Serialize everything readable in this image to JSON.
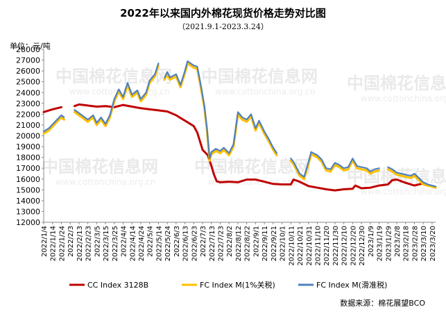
{
  "chart_data": {
    "type": "line",
    "title": "2022年以来国内外棉花现货价格走势对比图",
    "subtitle": "（2021.9.1-2023.3.24）",
    "ylabel": "单位：元/吨",
    "ylim": [
      12000,
      28000
    ],
    "yticks": [
      12000,
      13000,
      14000,
      15000,
      16000,
      17000,
      18000,
      19000,
      20000,
      21000,
      22000,
      23000,
      24000,
      25000,
      26000,
      27000,
      28000
    ],
    "grid": false,
    "legend_position": "bottom",
    "x_tick_labels": [
      "2022/1/4",
      "2022/1/14",
      "2022/1/24",
      "2022/2/3",
      "2022/2/13",
      "2022/2/23",
      "2022/3/5",
      "2022/3/15",
      "2022/3/25",
      "2022/4/4",
      "2022/4/14",
      "2022/4/24",
      "2022/5/4",
      "2022/5/14",
      "2022/5/24",
      "2022/6/3",
      "2022/6/13",
      "2022/6/23",
      "2022/7/3",
      "2022/7/13",
      "2022/7/23",
      "2022/8/2",
      "2022/8/12",
      "2022/8/22",
      "2022/9/1",
      "2022/9/11",
      "2022/9/21",
      "2022/10/1",
      "2022/10/11",
      "2022/10/21",
      "2022/10/31",
      "2022/11/10",
      "2022/11/20",
      "2022/11/30",
      "2022/12/10",
      "2022/12/20",
      "2022/12/30",
      "2023/1/9",
      "2023/1/19",
      "2023/1/29",
      "2023/2/8",
      "2023/2/18",
      "2023/2/28",
      "2023/3/10",
      "2023/3/20"
    ],
    "series": [
      {
        "name": "CC Index 3128B",
        "color": "#c00000",
        "points": [
          [
            "2022/1/4",
            22200
          ],
          [
            "2022/1/14",
            22450
          ],
          [
            "2022/1/24",
            22650
          ],
          [
            "2022/2/3",
            null
          ],
          [
            "2022/2/8",
            22750
          ],
          [
            "2022/2/13",
            22900
          ],
          [
            "2022/2/23",
            22800
          ],
          [
            "2022/3/5",
            22700
          ],
          [
            "2022/3/15",
            22750
          ],
          [
            "2022/3/25",
            22650
          ],
          [
            "2022/4/4",
            22850
          ],
          [
            "2022/4/14",
            22700
          ],
          [
            "2022/4/24",
            22550
          ],
          [
            "2022/5/4",
            22450
          ],
          [
            "2022/5/14",
            22350
          ],
          [
            "2022/5/24",
            22250
          ],
          [
            "2022/6/3",
            21900
          ],
          [
            "2022/6/13",
            21400
          ],
          [
            "2022/6/23",
            20900
          ],
          [
            "2022/6/27",
            20300
          ],
          [
            "2022/7/3",
            18700
          ],
          [
            "2022/7/9",
            18200
          ],
          [
            "2022/7/13",
            17200
          ],
          [
            "2022/7/16",
            16400
          ],
          [
            "2022/7/19",
            15800
          ],
          [
            "2022/7/23",
            15700
          ],
          [
            "2022/8/2",
            15750
          ],
          [
            "2022/8/12",
            15700
          ],
          [
            "2022/8/22",
            15950
          ],
          [
            "2022/9/1",
            15950
          ],
          [
            "2022/9/11",
            15750
          ],
          [
            "2022/9/21",
            15550
          ],
          [
            "2022/10/1",
            15500
          ],
          [
            "2022/10/11",
            15500
          ],
          [
            "2022/10/14",
            15950
          ],
          [
            "2022/10/21",
            15750
          ],
          [
            "2022/10/31",
            15350
          ],
          [
            "2022/11/10",
            15200
          ],
          [
            "2022/11/20",
            15050
          ],
          [
            "2022/11/30",
            14950
          ],
          [
            "2022/12/10",
            15050
          ],
          [
            "2022/12/20",
            15100
          ],
          [
            "2022/12/23",
            15400
          ],
          [
            "2022/12/30",
            15150
          ],
          [
            "2023/1/9",
            15200
          ],
          [
            "2023/1/19",
            15400
          ],
          [
            "2023/1/29",
            15500
          ],
          [
            "2023/2/3",
            15900
          ],
          [
            "2023/2/8",
            15950
          ],
          [
            "2023/2/18",
            15650
          ],
          [
            "2023/2/28",
            15400
          ],
          [
            "2023/3/10",
            15600
          ],
          [
            "2023/3/20",
            15300
          ],
          [
            "2023/3/24",
            15250
          ]
        ]
      },
      {
        "name": "FC Index M(1%关税)",
        "color": "#ffc000",
        "points": [
          [
            "2022/1/4",
            20200
          ],
          [
            "2022/1/10",
            20500
          ],
          [
            "2022/1/18",
            21200
          ],
          [
            "2022/1/24",
            21700
          ],
          [
            "2022/1/27",
            21500
          ],
          [
            "2022/2/3",
            null
          ],
          [
            "2022/2/8",
            22200
          ],
          [
            "2022/2/13",
            21900
          ],
          [
            "2022/2/23",
            21300
          ],
          [
            "2022/3/1",
            21700
          ],
          [
            "2022/3/5",
            21000
          ],
          [
            "2022/3/10",
            21500
          ],
          [
            "2022/3/15",
            20900
          ],
          [
            "2022/3/20",
            21700
          ],
          [
            "2022/3/25",
            23200
          ],
          [
            "2022/3/30",
            24100
          ],
          [
            "2022/4/4",
            23400
          ],
          [
            "2022/4/9",
            24700
          ],
          [
            "2022/4/14",
            23600
          ],
          [
            "2022/4/20",
            24000
          ],
          [
            "2022/4/24",
            23200
          ],
          [
            "2022/4/30",
            23800
          ],
          [
            "2022/5/4",
            24900
          ],
          [
            "2022/5/10",
            25500
          ],
          [
            "2022/5/14",
            26500
          ],
          [
            "2022/5/17",
            null
          ],
          [
            "2022/5/21",
            25200
          ],
          [
            "2022/5/24",
            25700
          ],
          [
            "2022/5/27",
            25200
          ],
          [
            "2022/6/3",
            25500
          ],
          [
            "2022/6/8",
            24500
          ],
          [
            "2022/6/13",
            25800
          ],
          [
            "2022/6/16",
            26700
          ],
          [
            "2022/6/23",
            26300
          ],
          [
            "2022/6/27",
            26200
          ],
          [
            "2022/7/1",
            24500
          ],
          [
            "2022/7/5",
            22600
          ],
          [
            "2022/7/8",
            20500
          ],
          [
            "2022/7/11",
            17700
          ],
          [
            "2022/7/13",
            18300
          ],
          [
            "2022/7/18",
            18600
          ],
          [
            "2022/7/23",
            18400
          ],
          [
            "2022/7/27",
            18700
          ],
          [
            "2022/8/2",
            18200
          ],
          [
            "2022/8/7",
            19000
          ],
          [
            "2022/8/12",
            22000
          ],
          [
            "2022/8/17",
            21500
          ],
          [
            "2022/8/22",
            21300
          ],
          [
            "2022/8/27",
            21800
          ],
          [
            "2022/9/1",
            20500
          ],
          [
            "2022/9/5",
            21200
          ],
          [
            "2022/9/11",
            20200
          ],
          [
            "2022/9/16",
            19500
          ],
          [
            "2022/9/21",
            18700
          ],
          [
            "2022/9/25",
            18200
          ],
          [
            "2022/10/1",
            null
          ],
          [
            "2022/10/11",
            17700
          ],
          [
            "2022/10/14",
            17400
          ],
          [
            "2022/10/21",
            16300
          ],
          [
            "2022/10/26",
            16000
          ],
          [
            "2022/10/31",
            17400
          ],
          [
            "2022/11/3",
            18300
          ],
          [
            "2022/11/10",
            18000
          ],
          [
            "2022/11/15",
            17600
          ],
          [
            "2022/11/20",
            16800
          ],
          [
            "2022/11/25",
            16700
          ],
          [
            "2022/11/30",
            17300
          ],
          [
            "2022/12/5",
            17100
          ],
          [
            "2022/12/10",
            16800
          ],
          [
            "2022/12/15",
            16900
          ],
          [
            "2022/12/20",
            17700
          ],
          [
            "2022/12/25",
            17000
          ],
          [
            "2022/12/30",
            16900
          ],
          [
            "2023/1/5",
            16800
          ],
          [
            "2023/1/9",
            16500
          ],
          [
            "2023/1/14",
            16700
          ],
          [
            "2023/1/19",
            16800
          ],
          [
            "2023/1/21",
            null
          ],
          [
            "2023/1/29",
            16900
          ],
          [
            "2023/2/3",
            16700
          ],
          [
            "2023/2/8",
            16400
          ],
          [
            "2023/2/13",
            16300
          ],
          [
            "2023/2/18",
            16200
          ],
          [
            "2023/2/24",
            16100
          ],
          [
            "2023/2/28",
            16300
          ],
          [
            "2023/3/5",
            15900
          ],
          [
            "2023/3/10",
            15500
          ],
          [
            "2023/3/15",
            15400
          ],
          [
            "2023/3/20",
            15300
          ],
          [
            "2023/3/24",
            15200
          ]
        ]
      },
      {
        "name": "FC Index M(滑准税)",
        "color": "#4f81bd",
        "points": [
          [
            "2022/1/4",
            20400
          ],
          [
            "2022/1/10",
            20700
          ],
          [
            "2022/1/18",
            21400
          ],
          [
            "2022/1/24",
            21900
          ],
          [
            "2022/1/27",
            21700
          ],
          [
            "2022/2/3",
            null
          ],
          [
            "2022/2/8",
            22400
          ],
          [
            "2022/2/13",
            22100
          ],
          [
            "2022/2/23",
            21500
          ],
          [
            "2022/3/1",
            21900
          ],
          [
            "2022/3/5",
            21200
          ],
          [
            "2022/3/10",
            21700
          ],
          [
            "2022/3/15",
            21100
          ],
          [
            "2022/3/20",
            21900
          ],
          [
            "2022/3/25",
            23400
          ],
          [
            "2022/3/30",
            24300
          ],
          [
            "2022/4/4",
            23600
          ],
          [
            "2022/4/9",
            24900
          ],
          [
            "2022/4/14",
            23800
          ],
          [
            "2022/4/20",
            24200
          ],
          [
            "2022/4/24",
            23400
          ],
          [
            "2022/4/30",
            24000
          ],
          [
            "2022/5/4",
            25100
          ],
          [
            "2022/5/10",
            25700
          ],
          [
            "2022/5/14",
            26700
          ],
          [
            "2022/5/17",
            null
          ],
          [
            "2022/5/21",
            25400
          ],
          [
            "2022/5/24",
            25900
          ],
          [
            "2022/5/27",
            25400
          ],
          [
            "2022/6/3",
            25700
          ],
          [
            "2022/6/8",
            24700
          ],
          [
            "2022/6/13",
            26000
          ],
          [
            "2022/6/16",
            26900
          ],
          [
            "2022/6/23",
            26500
          ],
          [
            "2022/6/27",
            26400
          ],
          [
            "2022/7/1",
            24700
          ],
          [
            "2022/7/5",
            22800
          ],
          [
            "2022/7/8",
            20700
          ],
          [
            "2022/7/11",
            17900
          ],
          [
            "2022/7/13",
            18500
          ],
          [
            "2022/7/18",
            18800
          ],
          [
            "2022/7/23",
            18600
          ],
          [
            "2022/7/27",
            18900
          ],
          [
            "2022/8/2",
            18400
          ],
          [
            "2022/8/7",
            19200
          ],
          [
            "2022/8/12",
            22200
          ],
          [
            "2022/8/17",
            21700
          ],
          [
            "2022/8/22",
            21500
          ],
          [
            "2022/8/27",
            22000
          ],
          [
            "2022/9/1",
            20700
          ],
          [
            "2022/9/5",
            21400
          ],
          [
            "2022/9/11",
            20400
          ],
          [
            "2022/9/16",
            19700
          ],
          [
            "2022/9/21",
            18900
          ],
          [
            "2022/9/25",
            18400
          ],
          [
            "2022/10/1",
            null
          ],
          [
            "2022/10/11",
            17900
          ],
          [
            "2022/10/14",
            17600
          ],
          [
            "2022/10/21",
            16500
          ],
          [
            "2022/10/26",
            16200
          ],
          [
            "2022/10/31",
            17600
          ],
          [
            "2022/11/3",
            18500
          ],
          [
            "2022/11/10",
            18200
          ],
          [
            "2022/11/15",
            17800
          ],
          [
            "2022/11/20",
            17000
          ],
          [
            "2022/11/25",
            16900
          ],
          [
            "2022/11/30",
            17500
          ],
          [
            "2022/12/5",
            17300
          ],
          [
            "2022/12/10",
            17000
          ],
          [
            "2022/12/15",
            17100
          ],
          [
            "2022/12/20",
            17900
          ],
          [
            "2022/12/25",
            17200
          ],
          [
            "2022/12/30",
            17100
          ],
          [
            "2023/1/5",
            17000
          ],
          [
            "2023/1/9",
            16700
          ],
          [
            "2023/1/14",
            16900
          ],
          [
            "2023/1/19",
            17000
          ],
          [
            "2023/1/21",
            null
          ],
          [
            "2023/1/29",
            17100
          ],
          [
            "2023/2/3",
            16900
          ],
          [
            "2023/2/8",
            16600
          ],
          [
            "2023/2/13",
            16500
          ],
          [
            "2023/2/18",
            16400
          ],
          [
            "2023/2/24",
            16300
          ],
          [
            "2023/2/28",
            16500
          ],
          [
            "2023/3/5",
            16100
          ],
          [
            "2023/3/10",
            15700
          ],
          [
            "2023/3/15",
            15500
          ],
          [
            "2023/3/20",
            15400
          ],
          [
            "2023/3/24",
            15300
          ]
        ]
      }
    ]
  },
  "source_note": "数据来源：棉花展望BCO",
  "watermark": {
    "brand": "中国棉花信息网",
    "url": "www.cottonchina.org.cn"
  }
}
